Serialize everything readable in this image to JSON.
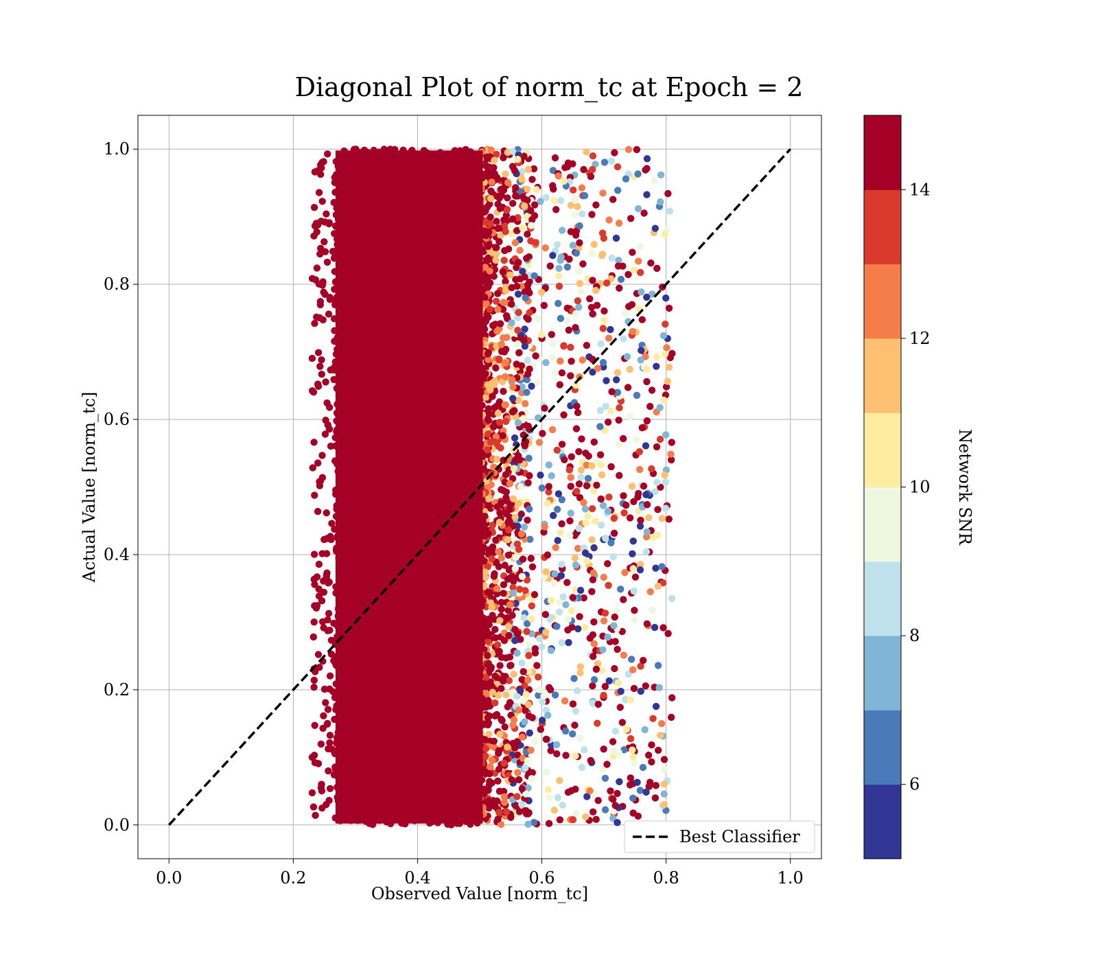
{
  "chart_data": {
    "type": "scatter",
    "title": "Diagonal Plot of norm_tc at Epoch = 2",
    "xlabel": "Observed Value [norm_tc]",
    "ylabel": "Actual Value [norm_tc]",
    "xlim": [
      -0.05,
      1.05
    ],
    "ylim": [
      -0.05,
      1.05
    ],
    "xticks": [
      "0.0",
      "0.2",
      "0.4",
      "0.6",
      "0.8",
      "1.0"
    ],
    "yticks": [
      "0.0",
      "0.2",
      "0.4",
      "0.6",
      "0.8",
      "1.0"
    ],
    "grid": true,
    "scatter_extent": {
      "x_range": [
        0.23,
        0.81
      ],
      "y_range": [
        0.0,
        1.0
      ],
      "dense_region_x": [
        0.26,
        0.52
      ],
      "dense_region_snr": "14+"
    },
    "reference_line": {
      "name": "Best Classifier",
      "x": [
        0.0,
        1.0
      ],
      "y": [
        0.0,
        1.0
      ],
      "style": "dashed",
      "color": "#000000"
    },
    "legend": {
      "entries": [
        "Best Classifier"
      ],
      "placement": "lower-right"
    },
    "colorbar": {
      "label": "Network SNR",
      "range": [
        5,
        15
      ],
      "ticks": [
        "6",
        "8",
        "10",
        "12",
        "14"
      ],
      "bins": [
        {
          "from": 5,
          "to": 6,
          "color": "#313695"
        },
        {
          "from": 6,
          "to": 7,
          "color": "#4a7ab7"
        },
        {
          "from": 7,
          "to": 8,
          "color": "#80b5d6"
        },
        {
          "from": 8,
          "to": 9,
          "color": "#bfe1ec"
        },
        {
          "from": 9,
          "to": 10,
          "color": "#eef7e0"
        },
        {
          "from": 10,
          "to": 11,
          "color": "#feeda1"
        },
        {
          "from": 11,
          "to": 12,
          "color": "#fdbf70"
        },
        {
          "from": 12,
          "to": 13,
          "color": "#f47d4a"
        },
        {
          "from": 13,
          "to": 14,
          "color": "#d93a2b"
        },
        {
          "from": 14,
          "to": 15,
          "color": "#a50026"
        }
      ]
    }
  }
}
